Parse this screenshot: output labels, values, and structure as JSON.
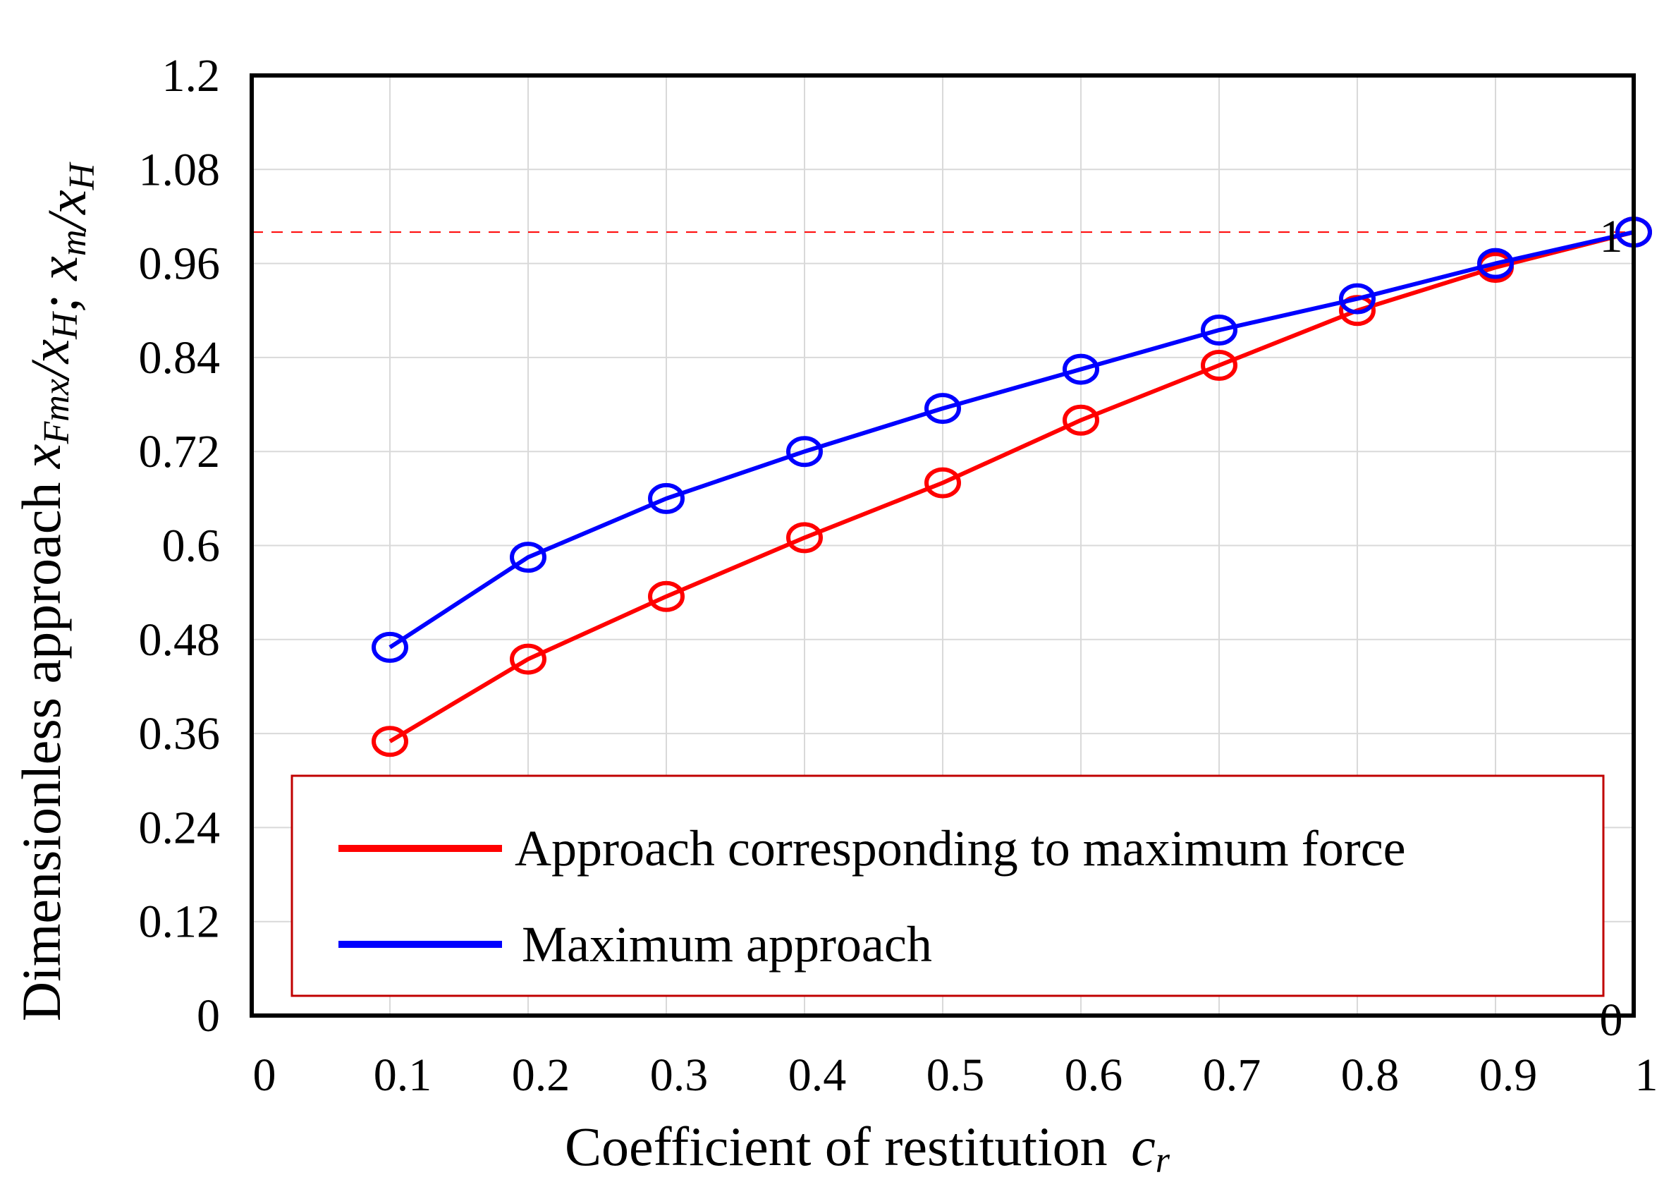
{
  "chart_data": {
    "type": "line",
    "title": "",
    "xlabel": "Coefficient of restitution",
    "xlabel_symbol": "c",
    "xlabel_symbol_sub": "r",
    "ylabel_text": "Dimensionless approach",
    "ylabel_symbols": [
      {
        "base": "x",
        "sub": "Fmx"
      },
      {
        "slash": "/"
      },
      {
        "base": "x",
        "sub": "H"
      },
      {
        "sep": "; "
      },
      {
        "base": "x",
        "sub": "m"
      },
      {
        "slash": "/"
      },
      {
        "base": "x",
        "sub": "H"
      }
    ],
    "xlim": [
      0,
      1
    ],
    "ylim": [
      0,
      1.2
    ],
    "x_ticks": [
      "0",
      "0.1",
      "0.2",
      "0.3",
      "0.4",
      "0.5",
      "0.6",
      "0.7",
      "0.8",
      "0.9",
      "1"
    ],
    "y_ticks": [
      "0",
      "0.12",
      "0.24",
      "0.36",
      "0.48",
      "0.6",
      "0.72",
      "0.84",
      "0.96",
      "1.08",
      "1.2"
    ],
    "grid": true,
    "x": [
      0.1,
      0.2,
      0.3,
      0.4,
      0.5,
      0.6,
      0.7,
      0.8,
      0.9,
      1.0
    ],
    "series": [
      {
        "name": "Approach corresponding to maximum force",
        "color": "#ff0000",
        "marker": "circle",
        "values": [
          0.35,
          0.455,
          0.535,
          0.61,
          0.68,
          0.76,
          0.83,
          0.9,
          0.955,
          1.0
        ]
      },
      {
        "name": "Maximum approach",
        "color": "#0000ff",
        "marker": "circle",
        "values": [
          0.47,
          0.585,
          0.66,
          0.72,
          0.775,
          0.825,
          0.875,
          0.915,
          0.96,
          1.0
        ]
      }
    ],
    "reference_line": {
      "y": 1.0,
      "color": "#ff0000",
      "style": "dashed"
    },
    "annotations": [
      {
        "text": "1",
        "x": 1.0,
        "y": 1.0
      },
      {
        "text": "0",
        "x": 1.0,
        "y": 0.0
      }
    ],
    "legend": {
      "position": "bottom-center",
      "border_color": "#c00000"
    }
  }
}
